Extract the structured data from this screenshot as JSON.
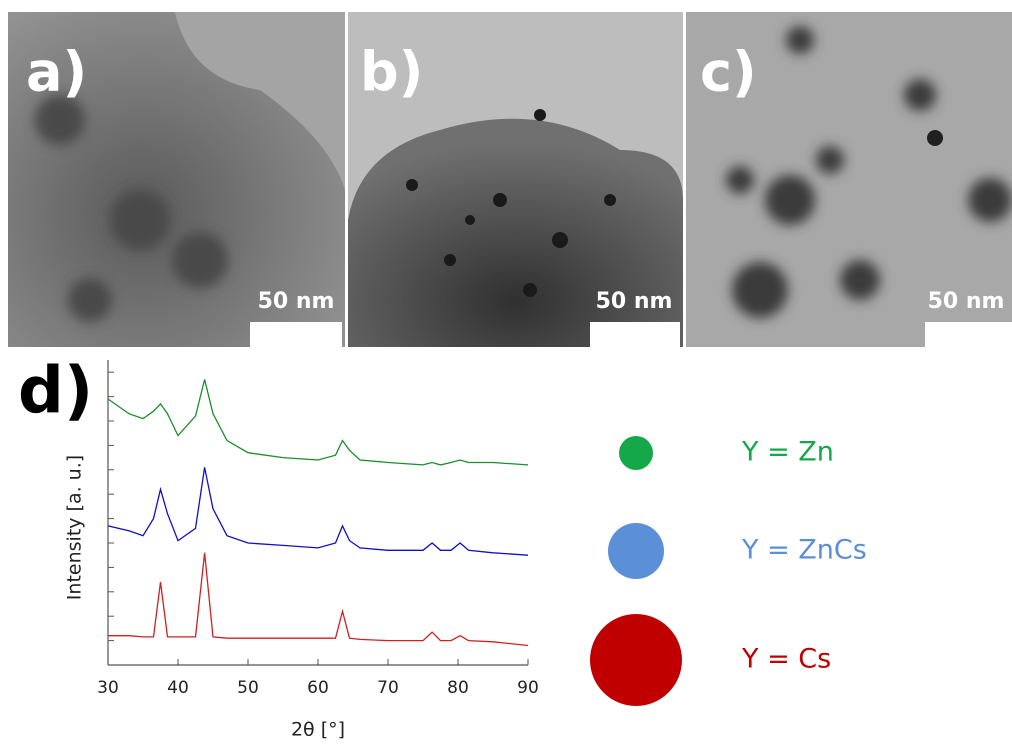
{
  "panels": [
    {
      "label": "a)",
      "scale_bar": "50 nm"
    },
    {
      "label": "b)",
      "scale_bar": "50 nm"
    },
    {
      "label": "c)",
      "scale_bar": "50 nm"
    }
  ],
  "chart_data": {
    "type": "line",
    "label": "d)",
    "xlabel": "2θ [°]",
    "ylabel": "Intensity [a. u.]",
    "x": [
      30,
      33,
      35,
      36.5,
      37.5,
      38.5,
      40,
      42.5,
      43.8,
      45,
      47,
      50,
      55,
      60,
      62.5,
      63.5,
      64.5,
      66,
      70,
      75,
      76.3,
      77.5,
      79,
      80.3,
      81.5,
      85,
      90
    ],
    "xlim": [
      30,
      90
    ],
    "xticks": [
      30,
      40,
      50,
      60,
      70,
      80,
      90
    ],
    "ylim": [
      0,
      12.5
    ],
    "yticks": [
      1,
      2,
      3,
      4,
      5,
      6,
      7,
      8,
      9,
      10,
      11,
      12
    ],
    "series": [
      {
        "name": "Y = Zn",
        "color": "#1a8f2a",
        "values": [
          10.9,
          10.3,
          10.1,
          10.4,
          10.7,
          10.3,
          9.4,
          10.2,
          11.7,
          10.3,
          9.2,
          8.7,
          8.5,
          8.4,
          8.6,
          9.2,
          8.8,
          8.4,
          8.3,
          8.2,
          8.3,
          8.2,
          8.3,
          8.4,
          8.3,
          8.3,
          8.2
        ]
      },
      {
        "name": "Y = ZnCs",
        "color": "#1010c8",
        "values": [
          5.7,
          5.5,
          5.3,
          6.0,
          7.2,
          6.2,
          5.1,
          5.6,
          8.1,
          6.4,
          5.3,
          5.0,
          4.9,
          4.8,
          5.0,
          5.7,
          5.1,
          4.8,
          4.7,
          4.7,
          5.0,
          4.7,
          4.7,
          5.0,
          4.7,
          4.6,
          4.5
        ]
      },
      {
        "name": "Y = Cs",
        "color": "#d02020",
        "values": [
          1.2,
          1.2,
          1.15,
          1.15,
          3.4,
          1.15,
          1.15,
          1.15,
          4.6,
          1.15,
          1.1,
          1.1,
          1.1,
          1.1,
          1.1,
          2.2,
          1.1,
          1.05,
          1.0,
          1.0,
          1.35,
          1.0,
          1.0,
          1.2,
          1.0,
          0.95,
          0.8
        ]
      }
    ],
    "legend_colors": [
      "#14a84a",
      "#5b8fd8",
      "#c00000"
    ]
  }
}
